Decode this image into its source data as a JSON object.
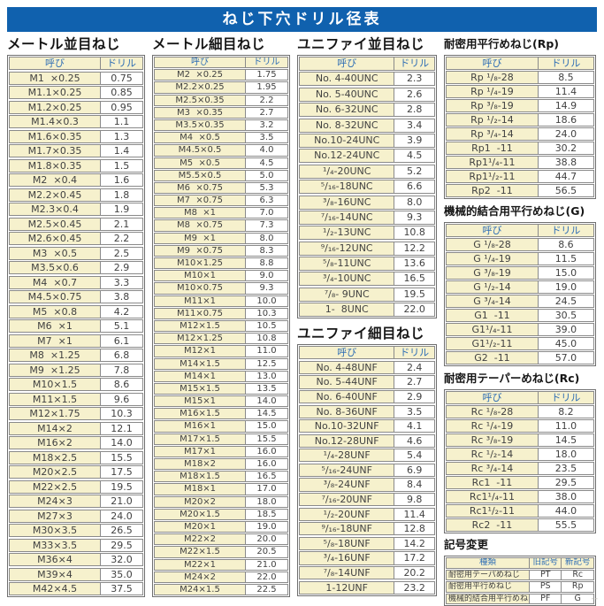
{
  "title": "ねじ下穴ドリル径表",
  "corner_mark": "--",
  "colors": {
    "title_bar": "#1061ae",
    "cell_yellow": "#f6f1cd",
    "header_text_blue": "#2f6eb5",
    "data_text": "#414141",
    "border_gray": "#8a8a8a"
  },
  "tables": {
    "metric_coarse": {
      "title": "メートル並目ねじ",
      "headers": [
        "呼び",
        "ドリル"
      ],
      "rows": [
        [
          "M1  ×0.25",
          "0.75"
        ],
        [
          "M1.1×0.25",
          "0.85"
        ],
        [
          "M1.2×0.25",
          "0.95"
        ],
        [
          "M1.4×0.3",
          "1.1"
        ],
        [
          "M1.6×0.35",
          "1.3"
        ],
        [
          "M1.7×0.35",
          "1.4"
        ],
        [
          "M1.8×0.35",
          "1.5"
        ],
        [
          "M2  ×0.4",
          "1.6"
        ],
        [
          "M2.2×0.45",
          "1.8"
        ],
        [
          "M2.3×0.4",
          "1.9"
        ],
        [
          "M2.5×0.45",
          "2.1"
        ],
        [
          "M2.6×0.45",
          "2.2"
        ],
        [
          "M3  ×0.5",
          "2.5"
        ],
        [
          "M3.5×0.6",
          "2.9"
        ],
        [
          "M4  ×0.7",
          "3.3"
        ],
        [
          "M4.5×0.75",
          "3.8"
        ],
        [
          "M5  ×0.8",
          "4.2"
        ],
        [
          "M6  ×1",
          "5.1"
        ],
        [
          "M7  ×1",
          "6.1"
        ],
        [
          "M8  ×1.25",
          "6.8"
        ],
        [
          "M9  ×1.25",
          "7.8"
        ],
        [
          "M10×1.5",
          "8.6"
        ],
        [
          "M11×1.5",
          "9.6"
        ],
        [
          "M12×1.75",
          "10.3"
        ],
        [
          "M14×2",
          "12.1"
        ],
        [
          "M16×2",
          "14.0"
        ],
        [
          "M18×2.5",
          "15.5"
        ],
        [
          "M20×2.5",
          "17.5"
        ],
        [
          "M22×2.5",
          "19.5"
        ],
        [
          "M24×3",
          "21.0"
        ],
        [
          "M27×3",
          "24.0"
        ],
        [
          "M30×3.5",
          "26.5"
        ],
        [
          "M33×3.5",
          "29.5"
        ],
        [
          "M36×4",
          "32.0"
        ],
        [
          "M39×4",
          "35.0"
        ],
        [
          "M42×4.5",
          "37.5"
        ]
      ]
    },
    "metric_fine": {
      "title": "メートル細目ねじ",
      "headers": [
        "呼び",
        "ドリル"
      ],
      "rows": [
        [
          "M2  ×0.25",
          "1.75"
        ],
        [
          "M2.2×0.25",
          "1.95"
        ],
        [
          "M2.5×0.35",
          "2.2"
        ],
        [
          "M3  ×0.35",
          "2.7"
        ],
        [
          "M3.5×0.35",
          "3.2"
        ],
        [
          "M4  ×0.5",
          "3.5"
        ],
        [
          "M4.5×0.5",
          "4.0"
        ],
        [
          "M5  ×0.5",
          "4.5"
        ],
        [
          "M5.5×0.5",
          "5.0"
        ],
        [
          "M6  ×0.75",
          "5.3"
        ],
        [
          "M7  ×0.75",
          "6.3"
        ],
        [
          "M8  ×1",
          "7.0"
        ],
        [
          "M8  ×0.75",
          "7.3"
        ],
        [
          "M9  ×1",
          "8.0"
        ],
        [
          "M9  ×0.75",
          "8.3"
        ],
        [
          "M10×1.25",
          "8.8"
        ],
        [
          "M10×1",
          "9.0"
        ],
        [
          "M10×0.75",
          "9.3"
        ],
        [
          "M11×1",
          "10.0"
        ],
        [
          "M11×0.75",
          "10.3"
        ],
        [
          "M12×1.5",
          "10.5"
        ],
        [
          "M12×1.25",
          "10.8"
        ],
        [
          "M12×1",
          "11.0"
        ],
        [
          "M14×1.5",
          "12.5"
        ],
        [
          "M14×1",
          "13.0"
        ],
        [
          "M15×1.5",
          "13.5"
        ],
        [
          "M15×1",
          "14.0"
        ],
        [
          "M16×1.5",
          "14.5"
        ],
        [
          "M16×1",
          "15.0"
        ],
        [
          "M17×1.5",
          "15.5"
        ],
        [
          "M17×1",
          "16.0"
        ],
        [
          "M18×2",
          "16.0"
        ],
        [
          "M18×1.5",
          "16.5"
        ],
        [
          "M18×1",
          "17.0"
        ],
        [
          "M20×2",
          "18.0"
        ],
        [
          "M20×1.5",
          "18.5"
        ],
        [
          "M20×1",
          "19.0"
        ],
        [
          "M22×2",
          "20.0"
        ],
        [
          "M22×1.5",
          "20.5"
        ],
        [
          "M22×1",
          "21.0"
        ],
        [
          "M24×2",
          "22.0"
        ],
        [
          "M24×1.5",
          "22.5"
        ]
      ]
    },
    "unified_coarse": {
      "title": "ユニファイ並目ねじ",
      "headers": [
        "呼び",
        "ドリル"
      ],
      "rows": [
        [
          "No. 4-40UNC",
          "2.3"
        ],
        [
          "No. 5-40UNC",
          "2.6"
        ],
        [
          "No. 6-32UNC",
          "2.8"
        ],
        [
          "No. 8-32UNC",
          "3.4"
        ],
        [
          "No.10-24UNC",
          "3.9"
        ],
        [
          "No.12-24UNC",
          "4.5"
        ],
        [
          "¹/₄-20UNC",
          "5.2"
        ],
        [
          "⁵/₁₆-18UNC",
          "6.6"
        ],
        [
          "³/₈-16UNC",
          "8.0"
        ],
        [
          "⁷/₁₆-14UNC",
          "9.3"
        ],
        [
          "¹/₂-13UNC",
          "10.8"
        ],
        [
          "⁹/₁₆-12UNC",
          "12.2"
        ],
        [
          "⁵/₈-11UNC",
          "13.6"
        ],
        [
          "³/₄-10UNC",
          "16.5"
        ],
        [
          "⁷/₈- 9UNC",
          "19.5"
        ],
        [
          "1-  8UNC",
          "22.0"
        ]
      ]
    },
    "unified_fine": {
      "title": "ユニファイ細目ねじ",
      "headers": [
        "呼び",
        "ドリル"
      ],
      "rows": [
        [
          "No. 4-48UNF",
          "2.4"
        ],
        [
          "No. 5-44UNF",
          "2.7"
        ],
        [
          "No. 6-40UNF",
          "2.9"
        ],
        [
          "No. 8-36UNF",
          "3.5"
        ],
        [
          "No.10-32UNF",
          "4.1"
        ],
        [
          "No.12-28UNF",
          "4.6"
        ],
        [
          "¹/₄-28UNF",
          "5.4"
        ],
        [
          "⁵/₁₆-24UNF",
          "6.9"
        ],
        [
          "³/₈-24UNF",
          "8.4"
        ],
        [
          "⁷/₁₆-20UNF",
          "9.8"
        ],
        [
          "¹/₂-20UNF",
          "11.4"
        ],
        [
          "⁹/₁₆-18UNF",
          "12.8"
        ],
        [
          "⁵/₈-18UNF",
          "14.2"
        ],
        [
          "³/₄-16UNF",
          "17.2"
        ],
        [
          "⁷/₈-14UNF",
          "20.2"
        ],
        [
          "1-12UNF",
          "23.2"
        ]
      ]
    },
    "rp": {
      "title": "耐密用平行めねじ(Rp)",
      "headers": [
        "呼び",
        "ドリル"
      ],
      "rows": [
        [
          "Rp ¹/₈-28",
          "8.5"
        ],
        [
          "Rp ¹/₄-19",
          "11.4"
        ],
        [
          "Rp ³/₈-19",
          "14.9"
        ],
        [
          "Rp ¹/₂-14",
          "18.6"
        ],
        [
          "Rp ³/₄-14",
          "24.0"
        ],
        [
          "Rp1  -11",
          "30.2"
        ],
        [
          "Rp1¹/₄-11",
          "38.8"
        ],
        [
          "Rp1¹/₂-11",
          "44.7"
        ],
        [
          "Rp2  -11",
          "56.5"
        ]
      ]
    },
    "g": {
      "title": "機械的結合用平行めねじ(G)",
      "headers": [
        "呼び",
        "ドリル"
      ],
      "rows": [
        [
          "G ¹/₈-28",
          "8.6"
        ],
        [
          "G ¹/₄-19",
          "11.5"
        ],
        [
          "G ³/₈-19",
          "15.0"
        ],
        [
          "G ¹/₂-14",
          "19.0"
        ],
        [
          "G ³/₄-14",
          "24.5"
        ],
        [
          "G1  -11",
          "30.5"
        ],
        [
          "G1¹/₄-11",
          "39.0"
        ],
        [
          "G1¹/₂-11",
          "45.0"
        ],
        [
          "G2  -11",
          "57.0"
        ]
      ]
    },
    "rc": {
      "title": "耐密用テーパーめねじ(Rc)",
      "headers": [
        "呼び",
        "ドリル"
      ],
      "rows": [
        [
          "Rc ¹/₈-28",
          "8.2"
        ],
        [
          "Rc ¹/₄-19",
          "11.0"
        ],
        [
          "Rc ³/₈-19",
          "14.5"
        ],
        [
          "Rc ¹/₂-14",
          "18.0"
        ],
        [
          "Rc ³/₄-14",
          "23.5"
        ],
        [
          "Rc1  -11",
          "29.5"
        ],
        [
          "Rc1¹/₄-11",
          "38.0"
        ],
        [
          "Rc1¹/₂-11",
          "44.0"
        ],
        [
          "Rc2  -11",
          "55.5"
        ]
      ]
    },
    "symbol_change": {
      "title": "記号変更",
      "headers": [
        "種類",
        "旧記号",
        "新記号"
      ],
      "rows": [
        [
          "耐密用テーパめねじ",
          "PT",
          "Rc"
        ],
        [
          "耐密用平行めねじ",
          "PS",
          "Rp"
        ],
        [
          "機械的結合用平行めねじ",
          "PF",
          "G"
        ]
      ]
    }
  }
}
